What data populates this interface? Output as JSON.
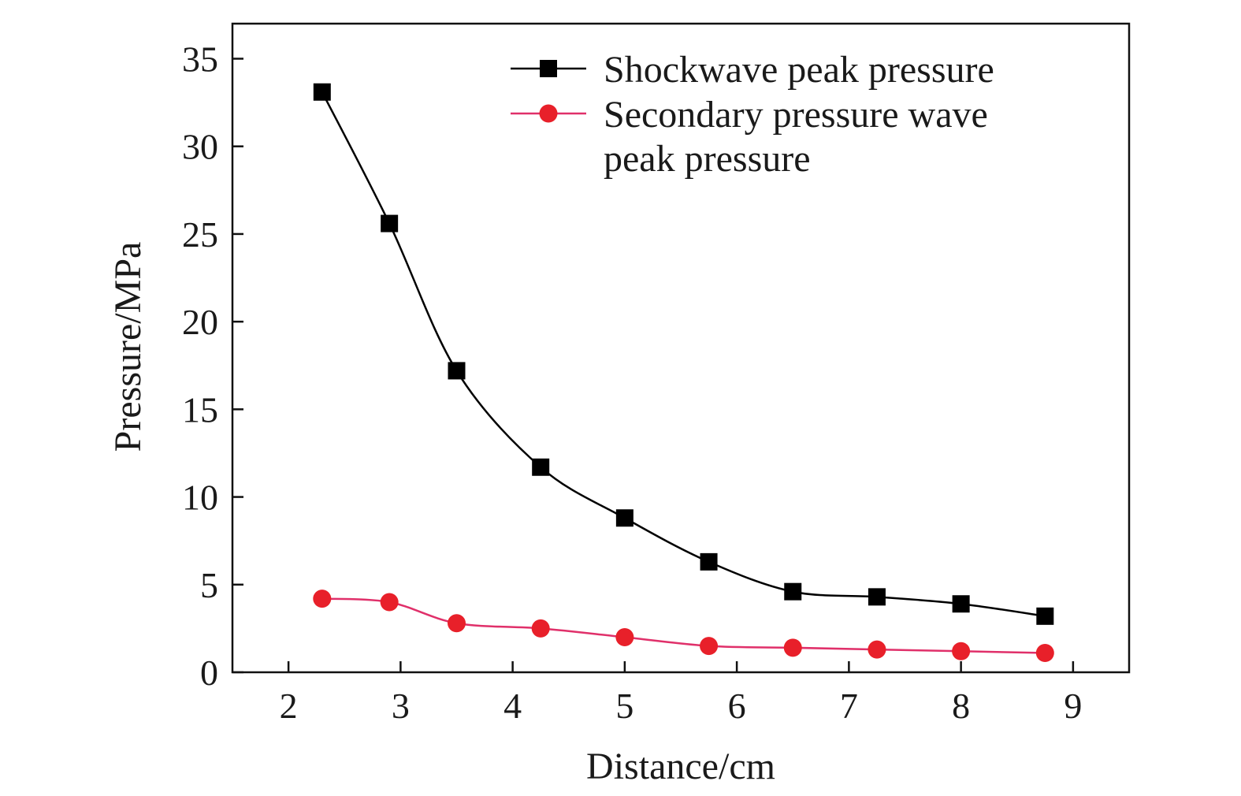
{
  "chart_data": {
    "type": "line",
    "xlabel": "Distance/cm",
    "ylabel": "Pressure/MPa",
    "xlim": [
      1.5,
      9.5
    ],
    "ylim": [
      0,
      37
    ],
    "xticks": [
      "2",
      "3",
      "4",
      "5",
      "6",
      "7",
      "8",
      "9"
    ],
    "yticks": [
      "0",
      "5",
      "10",
      "15",
      "20",
      "25",
      "30",
      "35"
    ],
    "grid": false,
    "legend_position": "top-right",
    "x": [
      2.3,
      2.9,
      3.5,
      4.25,
      5.0,
      5.75,
      6.5,
      7.25,
      8.0,
      8.75
    ],
    "series": [
      {
        "name": "Shockwave peak pressure",
        "marker": "square",
        "color": "#000000",
        "values": [
          33.1,
          25.6,
          17.2,
          11.7,
          8.8,
          6.3,
          4.6,
          4.3,
          3.9,
          3.2
        ]
      },
      {
        "name_lines": [
          "Secondary pressure wave",
          "peak pressure"
        ],
        "marker": "circle",
        "color": "#e8202a",
        "line_color": "#e0306a",
        "values": [
          4.2,
          4.0,
          2.8,
          2.5,
          2.0,
          1.5,
          1.4,
          1.3,
          1.2,
          1.1
        ]
      }
    ]
  }
}
